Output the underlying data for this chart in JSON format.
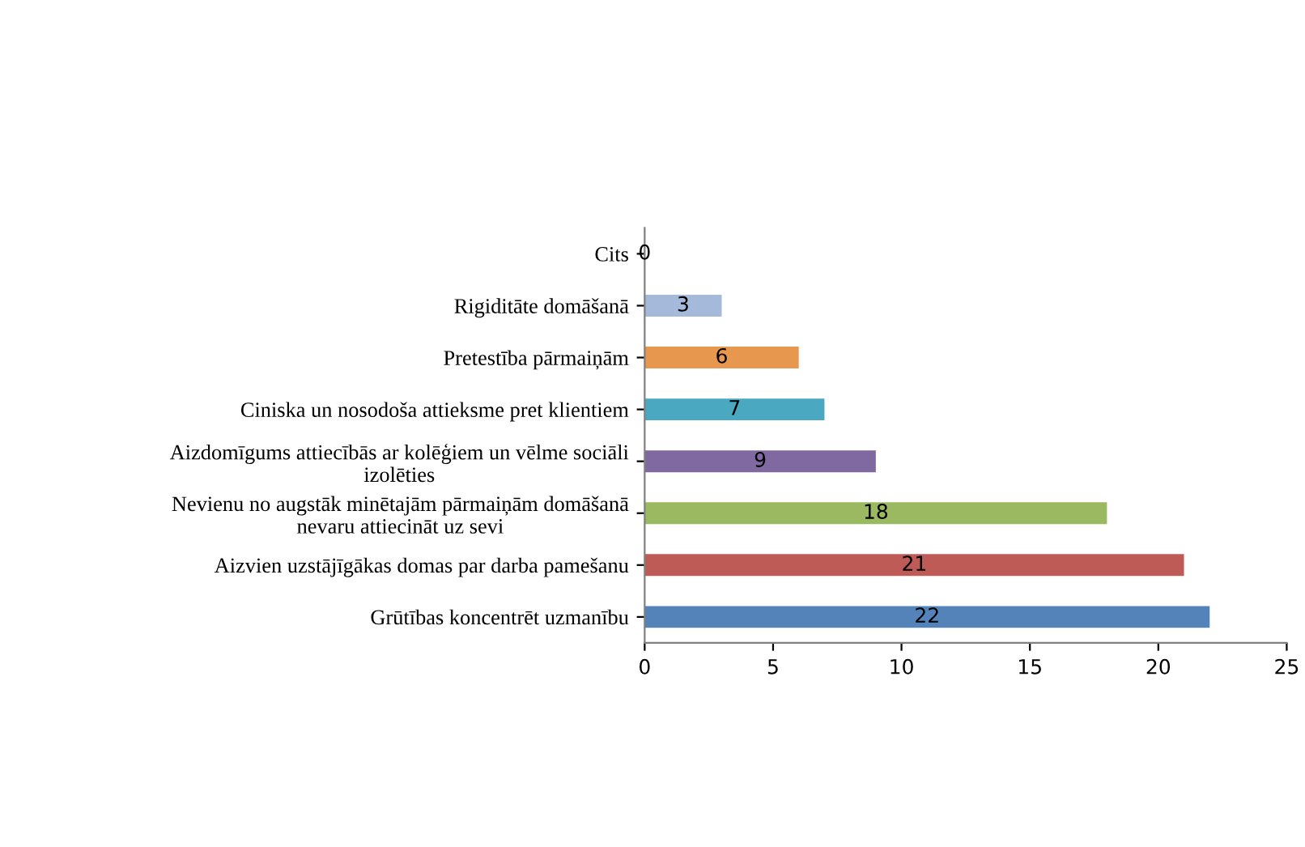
{
  "chart_data": {
    "type": "bar",
    "orientation": "horizontal",
    "categories": [
      "Cits",
      "Rigiditāte domāšanā",
      "Pretestība pārmaiņām",
      "Ciniska un nosodoša attieksme pret klientiem",
      "Aizdomīgums attiecībās ar kolēģiem un vēlme sociāli\nizolēties",
      "Nevienu no augstāk minētajām pārmaiņām domāšanā\nnevaru attiecināt uz sevi",
      "Aizvien uzstājīgākas domas par darba pamešanu",
      "Grūtības koncentrēt uzmanību"
    ],
    "values": [
      0,
      3,
      6,
      7,
      9,
      18,
      21,
      22
    ],
    "colors": [
      "#b45a56",
      "#a5b9db",
      "#e8974f",
      "#4aa8c0",
      "#8068a0",
      "#9ab961",
      "#bf5b57",
      "#5383b9"
    ],
    "xlim": [
      0,
      25
    ],
    "xticks": [
      0,
      5,
      10,
      15,
      20,
      25
    ],
    "data_labels": true,
    "grid": false,
    "legend": false
  }
}
